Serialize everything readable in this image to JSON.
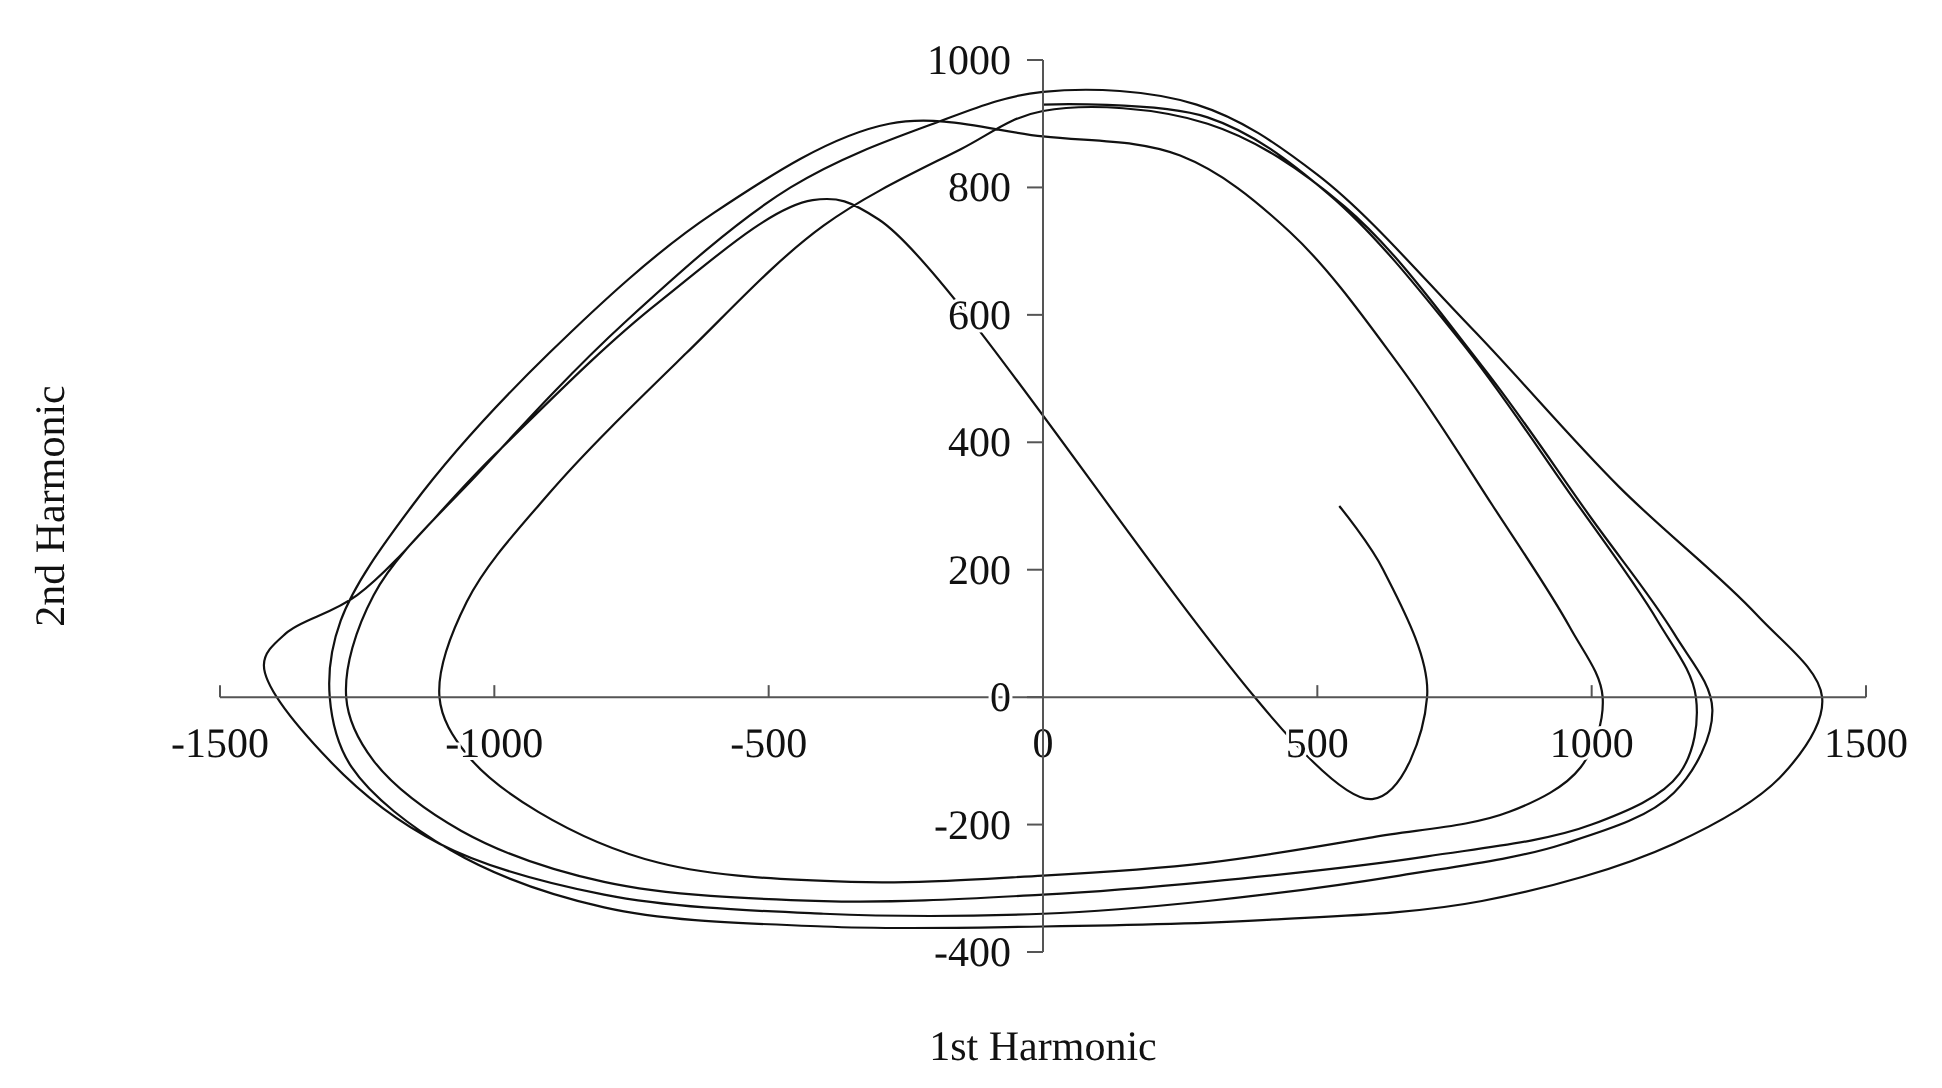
{
  "chart_data": {
    "type": "line",
    "xlabel": "1st Harmonic",
    "ylabel": "2nd Harmonic",
    "xlim": [
      -1500,
      1500
    ],
    "ylim": [
      -400,
      1000
    ],
    "xticks": [
      -1500,
      -1000,
      -500,
      0,
      500,
      1000,
      1500
    ],
    "yticks": [
      -400,
      -200,
      0,
      200,
      400,
      600,
      800,
      1000
    ],
    "grid": false,
    "marker": "none",
    "line_style": "solid",
    "series": [
      {
        "color": "#111111",
        "x": [
          0,
          300,
          520,
          760,
          960,
          1120,
          1190,
          1160,
          1000,
          700,
          300,
          0,
          -400,
          -800,
          -1060,
          -1220,
          -1270,
          -1220,
          -1020,
          -760,
          -460,
          -200,
          0,
          280,
          500,
          780,
          1050,
          1300,
          1420,
          1350,
          1150,
          800,
          400,
          0,
          -400,
          -800,
          -1080,
          -1260,
          -1300,
          -1280,
          -1150,
          -900,
          -600,
          -280,
          0,
          250,
          450,
          650,
          820,
          960,
          1020,
          980,
          850,
          600,
          300,
          0,
          -350,
          -700,
          -920,
          -1050,
          -1100,
          -1050,
          -900,
          -650,
          -400,
          -150,
          0,
          300,
          550,
          800,
          1000,
          1150,
          1220,
          1150,
          950,
          650,
          300,
          0,
          -400,
          -800,
          -1100,
          -1300,
          -1420,
          -1380,
          -1250,
          -1000,
          -700,
          -420,
          -300,
          600,
          700,
          620,
          540
        ],
        "values": [
          930,
          910,
          790,
          560,
          320,
          120,
          0,
          -120,
          -200,
          -250,
          -290,
          -310,
          -320,
          -290,
          -210,
          -100,
          0,
          160,
          360,
          590,
          800,
          900,
          950,
          930,
          820,
          580,
          330,
          130,
          0,
          -120,
          -230,
          -320,
          -350,
          -360,
          -360,
          -330,
          -240,
          -110,
          0,
          120,
          300,
          540,
          760,
          900,
          880,
          850,
          730,
          520,
          300,
          110,
          0,
          -110,
          -180,
          -220,
          -260,
          -280,
          -290,
          -260,
          -180,
          -90,
          0,
          150,
          320,
          540,
          740,
          860,
          920,
          900,
          770,
          520,
          280,
          100,
          -20,
          -150,
          -230,
          -280,
          -320,
          -340,
          -340,
          -310,
          -230,
          -100,
          50,
          100,
          160,
          380,
          620,
          780,
          750,
          -160,
          0,
          200,
          300
        ]
      }
    ]
  }
}
